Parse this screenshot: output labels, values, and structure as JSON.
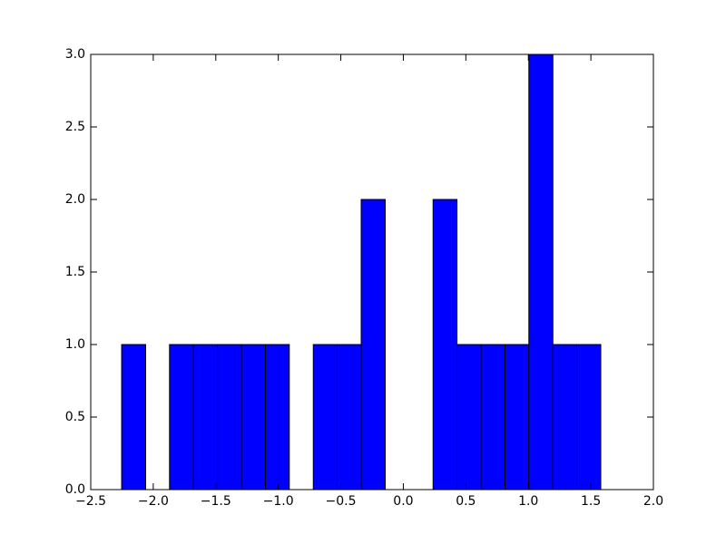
{
  "chart_data": {
    "type": "histogram",
    "bins": [
      -2.253,
      -2.061,
      -1.87,
      -1.678,
      -1.487,
      -1.295,
      -1.103,
      -0.912,
      -0.72,
      -0.529,
      -0.337,
      -0.145,
      0.046,
      0.238,
      0.429,
      0.621,
      0.813,
      1.004,
      1.196,
      1.387,
      1.579
    ],
    "values": [
      1,
      0,
      1,
      1,
      1,
      1,
      1,
      0,
      1,
      1,
      2,
      0,
      0,
      2,
      1,
      1,
      1,
      3,
      1,
      1
    ],
    "color": "#0000ff",
    "xlim": [
      -2.5,
      2.0
    ],
    "xticks": [
      {
        "value": -2.5,
        "label": "−2.5"
      },
      {
        "value": -2.0,
        "label": "−2.0"
      },
      {
        "value": -1.5,
        "label": "−1.5"
      },
      {
        "value": -1.0,
        "label": "−1.0"
      },
      {
        "value": -0.5,
        "label": "−0.5"
      },
      {
        "value": 0,
        "label": "0.0"
      },
      0.5,
      {
        "value": 1,
        "label": "1.0"
      },
      1.5,
      {
        "value": 2,
        "label": "2.0"
      }
    ],
    "ylim": [
      0,
      3
    ],
    "yticks": [
      {
        "value": 0,
        "label": "0.0"
      },
      0.5,
      {
        "value": 1,
        "label": "1.0"
      },
      1.5,
      {
        "value": 2,
        "label": "2.0"
      },
      2.5,
      {
        "value": 3,
        "label": "3.0"
      }
    ],
    "grid": false
  }
}
